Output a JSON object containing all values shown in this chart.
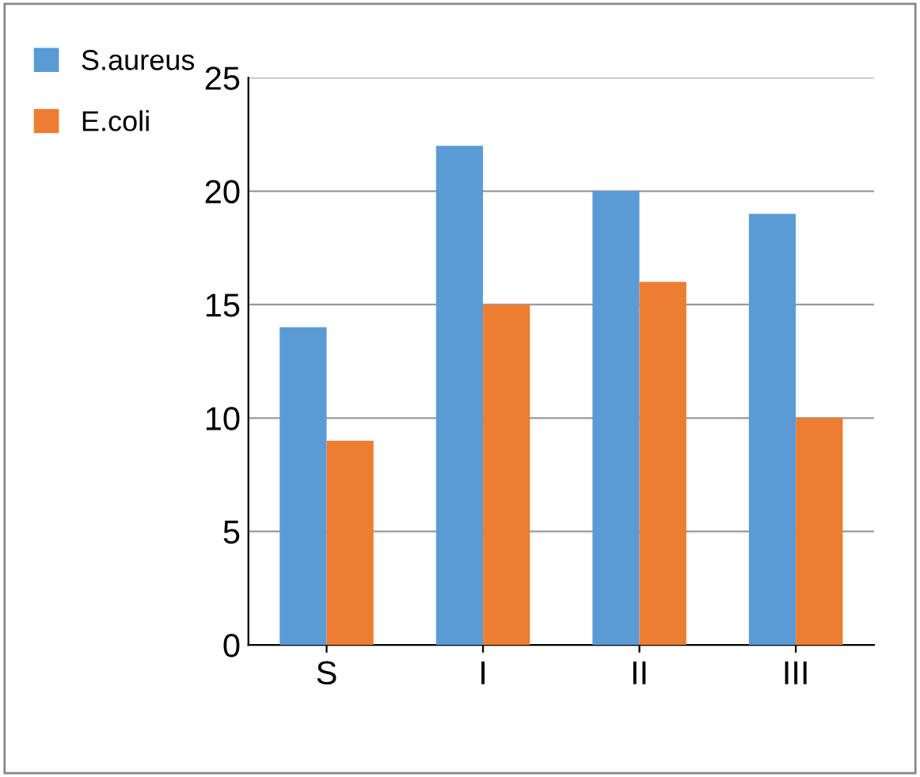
{
  "chart_data": {
    "type": "bar",
    "categories": [
      "S",
      "I",
      "II",
      "III"
    ],
    "series": [
      {
        "name": "S.aureus",
        "color": "#5b9bd5",
        "values": [
          14,
          22,
          20,
          19
        ]
      },
      {
        "name": "E.coli",
        "color": "#ed7d31",
        "values": [
          9,
          15,
          16,
          10
        ]
      }
    ],
    "ylim": [
      0,
      25
    ],
    "yticks": [
      0,
      5,
      10,
      15,
      20,
      25
    ],
    "grid": "y",
    "legend": "top left"
  }
}
